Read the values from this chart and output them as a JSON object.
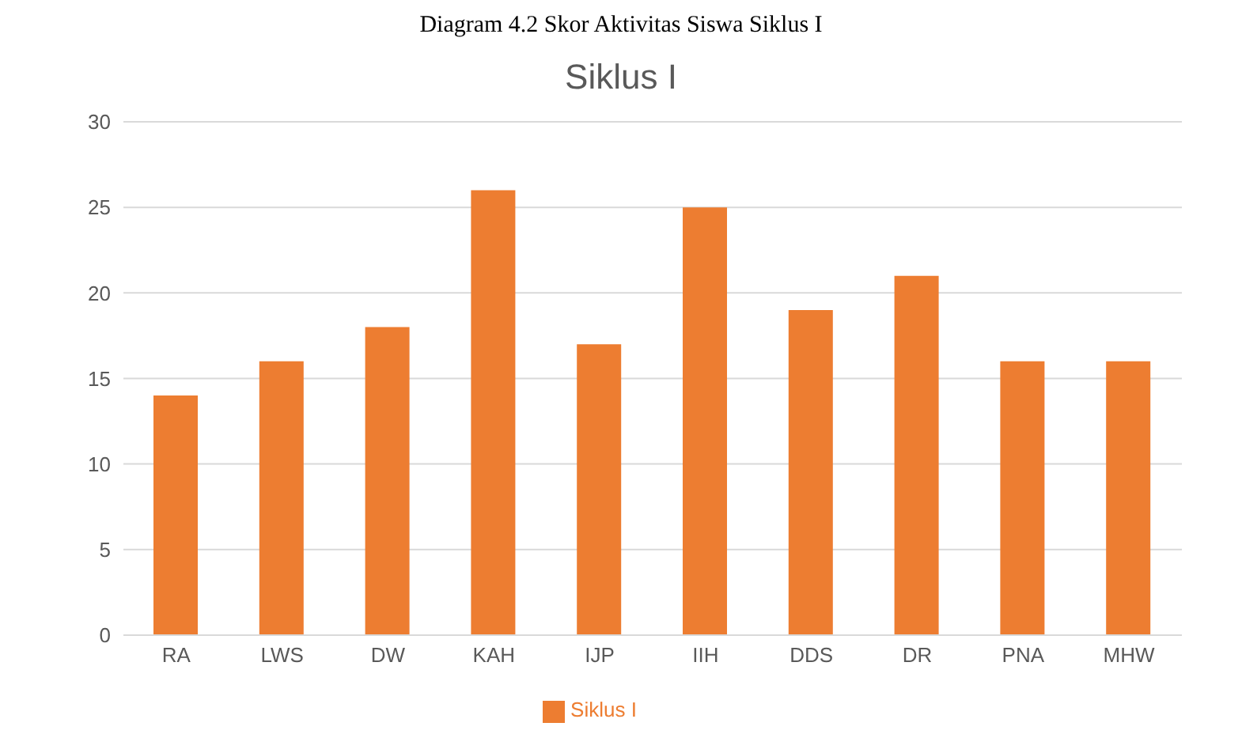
{
  "chart_data": {
    "type": "bar",
    "title": "Siklus I",
    "annotations": [
      "Diagram 4.2 Skor Aktivitas Siswa Siklus I"
    ],
    "categories": [
      "RA",
      "LWS",
      "DW",
      "KAH",
      "IJP",
      "IIH",
      "DDS",
      "DR",
      "PNA",
      "MHW"
    ],
    "series": [
      {
        "name": "Siklus I",
        "color": "#ed7d31",
        "values": [
          14,
          16,
          18,
          26,
          17,
          25,
          19,
          21,
          16,
          16
        ]
      }
    ],
    "ylim": [
      0,
      30
    ],
    "yticks": [
      0,
      5,
      10,
      15,
      20,
      25,
      30
    ],
    "grid": "y",
    "legend": "bottom"
  }
}
